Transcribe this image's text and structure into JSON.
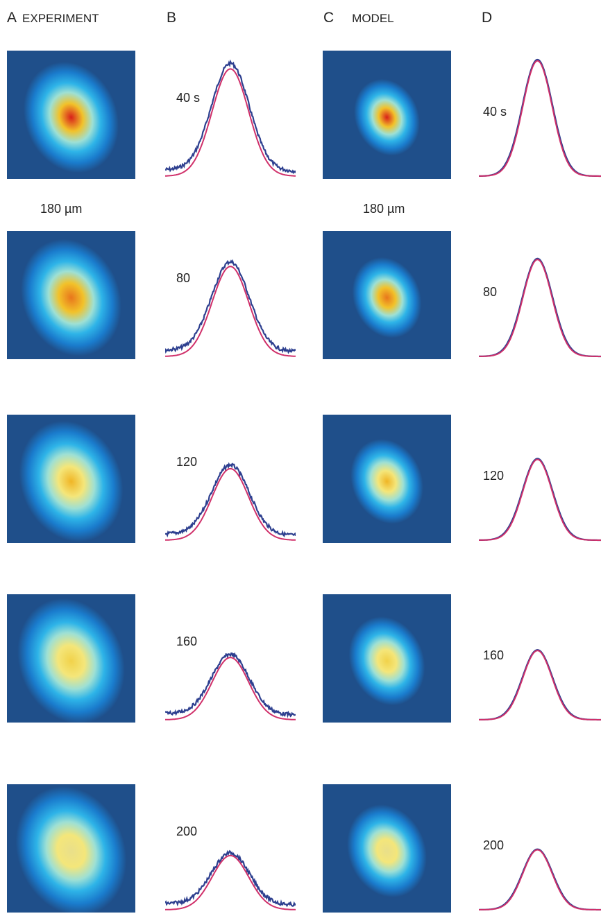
{
  "headers": {
    "A": {
      "letter": "A",
      "text": "EXPERIMENT"
    },
    "B": {
      "letter": "B",
      "text": ""
    },
    "C": {
      "letter": "C",
      "text": "MODEL"
    },
    "D": {
      "letter": "D",
      "text": ""
    }
  },
  "scale_bar": {
    "experiment": "180 µm",
    "model": "180 µm"
  },
  "rows": [
    {
      "time_label": "40 s",
      "exp_peak": 0.93,
      "model_peak": 0.95,
      "exp_width": 0.55,
      "model_width": 0.38,
      "model_curve_peak": 1.0
    },
    {
      "time_label": "80",
      "exp_peak": 0.78,
      "model_peak": 0.8,
      "exp_width": 0.58,
      "model_width": 0.4,
      "model_curve_peak": 0.84
    },
    {
      "time_label": "120",
      "exp_peak": 0.62,
      "model_peak": 0.68,
      "exp_width": 0.6,
      "model_width": 0.42,
      "model_curve_peak": 0.7
    },
    {
      "time_label": "160",
      "exp_peak": 0.54,
      "model_peak": 0.58,
      "exp_width": 0.62,
      "model_width": 0.44,
      "model_curve_peak": 0.6
    },
    {
      "time_label": "200",
      "exp_peak": 0.47,
      "model_peak": 0.5,
      "exp_width": 0.64,
      "model_width": 0.46,
      "model_curve_peak": 0.52
    }
  ],
  "colors": {
    "image_bg": "#1f4f8a",
    "experiment_trace": "#2d3f8f",
    "fit_trace": "#d0306a",
    "model_trace": "#2d3f8f"
  }
}
